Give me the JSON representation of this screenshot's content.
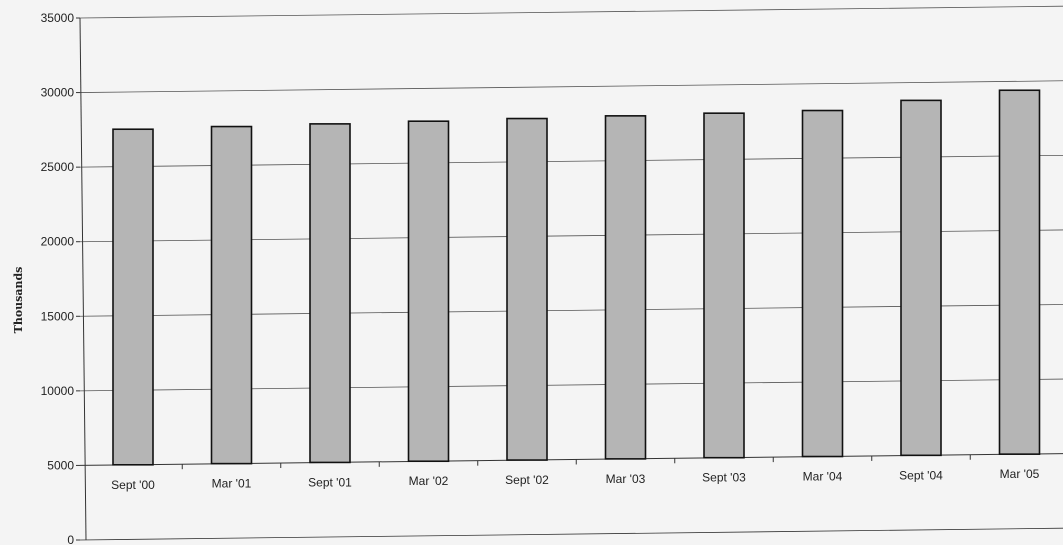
{
  "chart_data": {
    "type": "bar",
    "title": "",
    "xlabel": "",
    "ylabel": "Thousands",
    "ylim": [
      0,
      35000
    ],
    "yticks": [
      0,
      5000,
      10000,
      15000,
      20000,
      25000,
      30000,
      35000
    ],
    "categories": [
      "Sept '00",
      "Mar '01",
      "Sept '01",
      "Mar '02",
      "Sept '02",
      "Mar '03",
      "Sept '03",
      "Mar '04",
      "Sept '04",
      "Mar '05"
    ],
    "values": [
      27500,
      27600,
      27700,
      27800,
      27900,
      28000,
      28100,
      28200,
      28800,
      29400
    ],
    "grid": true,
    "legend": "none",
    "colors": {
      "bar_fill": "#b5b5b5",
      "bar_stroke": "#111111",
      "grid": "#555555",
      "axis": "#333333"
    }
  }
}
